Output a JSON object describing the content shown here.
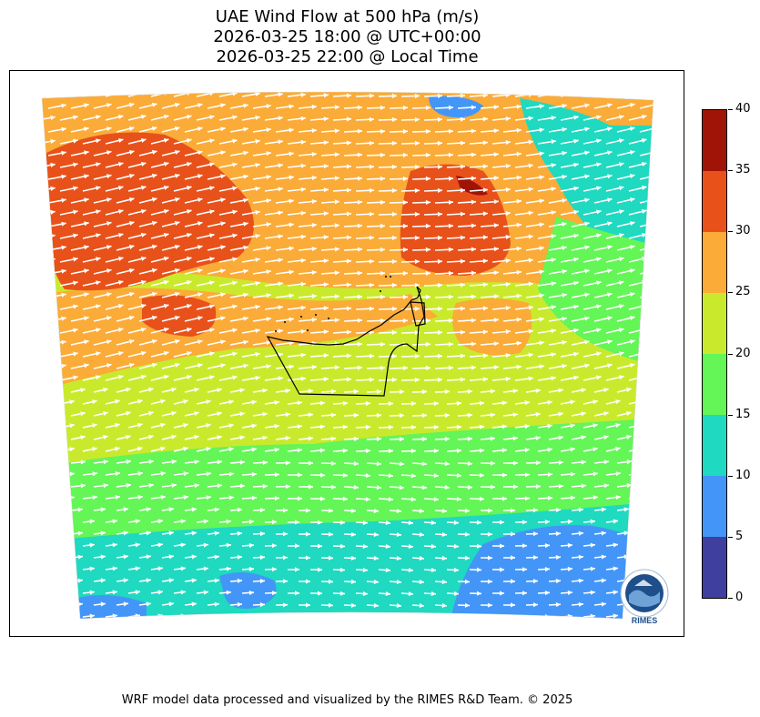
{
  "title": {
    "line1": "UAE Wind Flow at 500 hPa (m/s)",
    "line2": "2026-03-25 18:00 @ UTC+00:00",
    "line3": "2026-03-25 22:00 @ Local Time"
  },
  "colorbar": {
    "ticks": [
      "0",
      "5",
      "10",
      "15",
      "20",
      "25",
      "30",
      "35",
      "40"
    ],
    "levels": [
      {
        "from": 0,
        "to": 5,
        "color": "#3f3fa0"
      },
      {
        "from": 5,
        "to": 10,
        "color": "#4396f7"
      },
      {
        "from": 10,
        "to": 15,
        "color": "#1fd9c0"
      },
      {
        "from": 15,
        "to": 20,
        "color": "#64f557"
      },
      {
        "from": 20,
        "to": 25,
        "color": "#c9ea2c"
      },
      {
        "from": 25,
        "to": 30,
        "color": "#fbab37"
      },
      {
        "from": 30,
        "to": 35,
        "color": "#e8511a"
      },
      {
        "from": 35,
        "to": 40,
        "color": "#a01408"
      }
    ]
  },
  "map": {
    "variable": "wind speed",
    "units": "m/s",
    "pressure_level": "500 hPa",
    "vector_color": "#ffffff",
    "prevailing_flow": "west-southwesterly",
    "boundary_color": "#000000"
  },
  "logo": {
    "text": "RIMES"
  },
  "footer": {
    "text": "WRF model data processed and visualized by the RIMES R&D Team. © 2025"
  }
}
